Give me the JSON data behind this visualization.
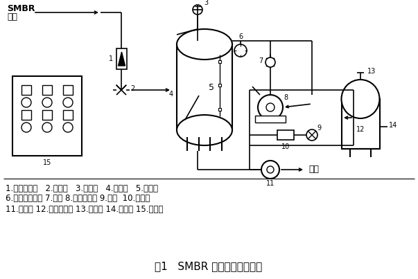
{
  "title": "图1   SMBR 真空抽水自控系统",
  "title_fontsize": 11,
  "legend_line1": "1.转子流量计   2.进水阀   3.放气阀   4.真空罐   5.液位计",
  "legend_line2": "6.电接点压力表 7.闸阀 8.水环真空泵 9.球阀  10.过滤器",
  "legend_line3": "11.出水泵 12.气水分离器 13.排气口 14.放水口 15.电控柜",
  "bg_color": "#ffffff",
  "line_color": "#000000",
  "outlet_label": "出水"
}
